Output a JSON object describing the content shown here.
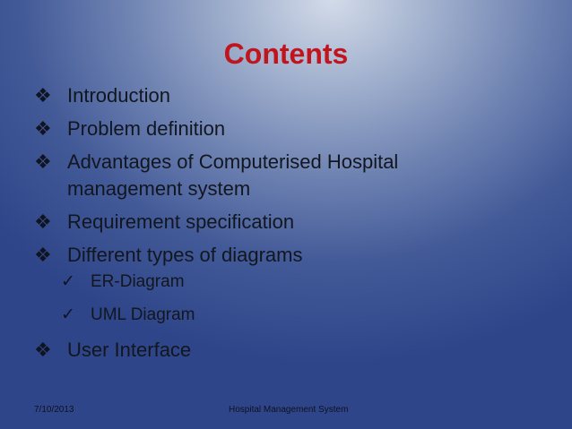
{
  "slide": {
    "title": "Contents",
    "bullet_glyph": "❖",
    "check_glyph": "✓",
    "items": [
      {
        "label": "Introduction"
      },
      {
        "label": "Problem definition"
      },
      {
        "label": "Advantages of Computerised Hospital management system"
      },
      {
        "label": "Requirement specification"
      },
      {
        "label": "Different types of diagrams",
        "subitems": [
          "ER-Diagram",
          "UML Diagram"
        ]
      },
      {
        "label": "User Interface"
      }
    ],
    "footer": {
      "date": "7/10/2013",
      "title": "Hospital Management System"
    },
    "colors": {
      "title": "#c0151d",
      "text": "#12161f",
      "background_top": "#d3dbe9",
      "background_bottom": "#2e4589"
    }
  }
}
